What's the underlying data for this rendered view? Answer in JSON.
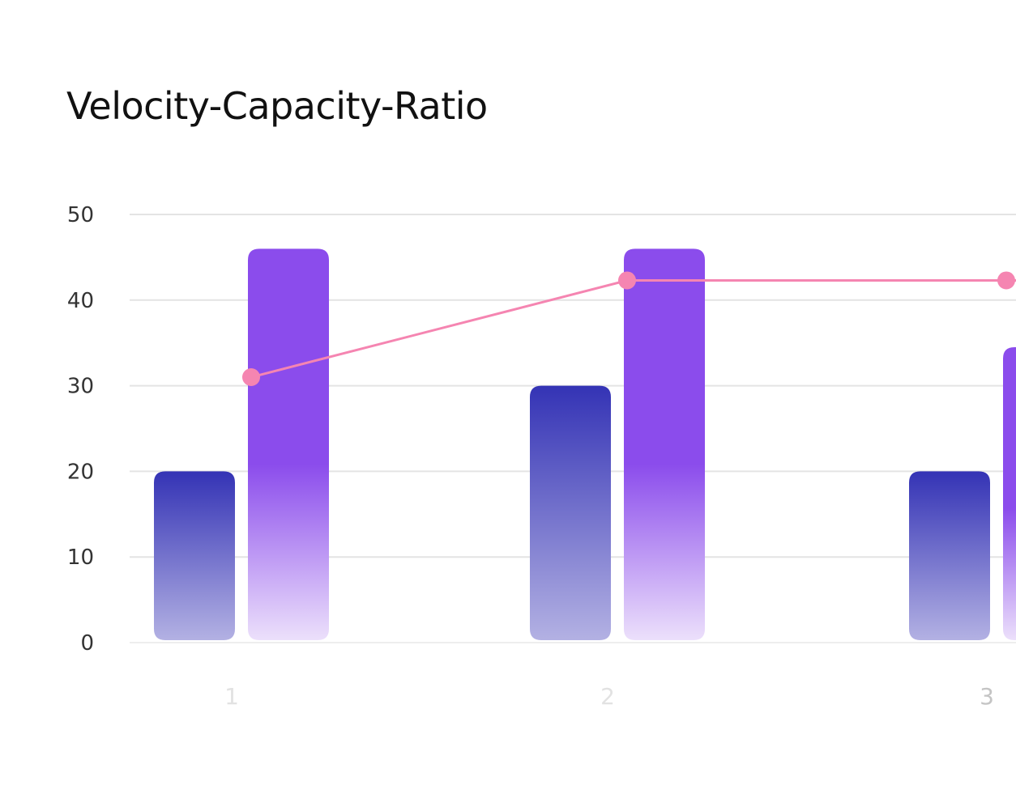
{
  "chart_data": {
    "type": "bar",
    "title": "Velocity-Capacity-Ratio",
    "xlabel": "",
    "ylabel": "",
    "categories": [
      "1",
      "2",
      "3"
    ],
    "ylim": [
      0,
      50
    ],
    "yticks": [
      0,
      10,
      20,
      30,
      40,
      50
    ],
    "grid": true,
    "legend": "none",
    "series": [
      {
        "kind": "bar",
        "values": [
          20,
          30,
          20
        ],
        "color_top": "#3433b5",
        "color_bottom": "#b3b1e3"
      },
      {
        "kind": "bar",
        "values": [
          46,
          46,
          34.5
        ],
        "color_top": "#8b4cec",
        "color_bottom": "#ece0fb"
      },
      {
        "kind": "line",
        "values": [
          31,
          42.3,
          42.3
        ],
        "color": "#f585b1"
      }
    ]
  }
}
